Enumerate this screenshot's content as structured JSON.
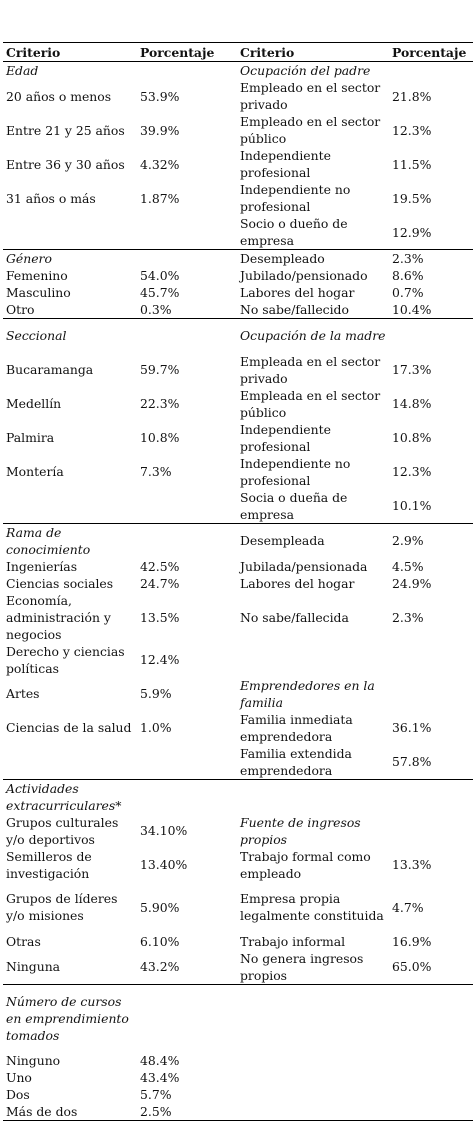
{
  "header": {
    "c1": "Criterio",
    "c2": "Porcentaje",
    "c3": "Criterio",
    "c4": "Porcentaje"
  },
  "rows": [
    {
      "h": 17,
      "l": "Edad",
      "li": 1,
      "lp": "",
      "r": "Ocupación del padre",
      "ri": 1,
      "rp": ""
    },
    {
      "h": 34,
      "l": "20 años o menos",
      "lp": "53.9%",
      "r": "Empleado en el sector privado",
      "rp": "21.8%"
    },
    {
      "h": 34,
      "l": "Entre 21 y 25 años",
      "lp": "39.9%",
      "r": "Empleado en el sector público",
      "rp": "12.3%"
    },
    {
      "h": 34,
      "l": "Entre 36 y 30 años",
      "lp": "4.32%",
      "r": "Independiente profesional",
      "rp": "11.5%"
    },
    {
      "h": 34,
      "l": "31 años o más",
      "lp": "1.87%",
      "r": "Independiente no profesional",
      "rp": "19.5%"
    },
    {
      "h": 34,
      "l": "",
      "lp": "",
      "r": "Socio o dueño de empresa",
      "rp": "12.9%"
    },
    {
      "h": 17,
      "top": 1,
      "l": "Género",
      "li": 1,
      "lp": "",
      "r": "Desempleado",
      "rp": "2.3%"
    },
    {
      "h": 17,
      "l": "Femenino",
      "lp": "54.0%",
      "r": "Jubilado/pensionado",
      "rp": "8.6%"
    },
    {
      "h": 17,
      "l": "Masculino",
      "lp": "45.7%",
      "r": "Labores del hogar",
      "rp": "0.7%"
    },
    {
      "h": 17,
      "l": "Otro",
      "lp": "0.3%",
      "r": "No sabe/fallecido",
      "rp": "10.4%"
    },
    {
      "h": 34,
      "top": 1,
      "l": "Seccional",
      "li": 1,
      "lp": "",
      "r": "Ocupación de la madre",
      "ri": 1,
      "rp": ""
    },
    {
      "h": 34,
      "l": "Bucaramanga",
      "lp": "59.7%",
      "r": "Empleada en el sector privado",
      "rp": "17.3%"
    },
    {
      "h": 34,
      "l": "Medellín",
      "lp": "22.3%",
      "r": "Empleada en el sector público",
      "rp": "14.8%"
    },
    {
      "h": 34,
      "l": "Palmira",
      "lp": "10.8%",
      "r": "Independiente profesional",
      "rp": "10.8%"
    },
    {
      "h": 34,
      "l": "Montería",
      "lp": "7.3%",
      "r": "Independiente no profesional",
      "rp": "12.3%"
    },
    {
      "h": 34,
      "l": "",
      "lp": "",
      "r": "Socia o dueña de empresa",
      "rp": "10.1%"
    },
    {
      "h": 34,
      "top": 1,
      "l": "Rama de conocimiento",
      "li": 1,
      "lp": "",
      "r": "Desempleada",
      "rp": "2.9%"
    },
    {
      "h": 17,
      "l": "Ingenierías",
      "lp": "42.5%",
      "r": "Jubilada/pensionada",
      "rp": "4.5%"
    },
    {
      "h": 17,
      "l": "Ciencias sociales",
      "lp": "24.7%",
      "r": "Labores del hogar",
      "rp": "24.9%"
    },
    {
      "h": 51,
      "l": "Economía, administración y negocios",
      "lp": "13.5%",
      "r": "No sabe/fallecida",
      "rp": "2.3%"
    },
    {
      "h": 34,
      "l": "Derecho y ciencias políticas",
      "lp": "12.4%",
      "r": "",
      "rp": ""
    },
    {
      "h": 34,
      "l": "Artes",
      "lp": "5.9%",
      "r": "Emprendedores en la familia",
      "ri": 1,
      "rp": ""
    },
    {
      "h": 34,
      "l": "Ciencias de la salud",
      "lp": "1.0%",
      "r": "Familia inmediata emprendedora",
      "rp": "36.1%"
    },
    {
      "h": 34,
      "l": "",
      "lp": "",
      "r": "Familia extendida emprendedora",
      "rp": "57.8%"
    },
    {
      "h": 34,
      "top": 1,
      "l": "Actividades extracurriculares*",
      "li": 1,
      "lp": "",
      "r": "",
      "rp": ""
    },
    {
      "h": 34,
      "l": "Grupos culturales y/o deportivos",
      "lp": "34.10%",
      "r": "Fuente de ingresos propios",
      "ri": 1,
      "rp": ""
    },
    {
      "h": 34,
      "l": "Semilleros de investigación",
      "lp": "13.40%",
      "r": "Trabajo formal como empleado",
      "rp": "13.3%"
    },
    {
      "h": 51,
      "l": "Grupos de líderes y/o misiones",
      "lp": "5.90%",
      "r": "Empresa propia legalmente constituida",
      "rp": "4.7%"
    },
    {
      "h": 17,
      "l": "Otras",
      "lp": "6.10%",
      "r": "Trabajo informal",
      "rp": "16.9%"
    },
    {
      "h": 34,
      "l": "Ninguna",
      "lp": "43.2%",
      "r": "No genera ingresos propios",
      "rp": "65.0%"
    },
    {
      "h": 68,
      "top": 1,
      "l": "Número de cursos en emprendimiento tomados",
      "li": 1,
      "lp": "",
      "r": "",
      "rp": ""
    },
    {
      "h": 17,
      "l": "Ninguno",
      "lp": "48.4%",
      "r": "",
      "rp": ""
    },
    {
      "h": 17,
      "l": "Uno",
      "lp": "43.4%",
      "r": "",
      "rp": ""
    },
    {
      "h": 17,
      "l": "Dos",
      "lp": "5.7%",
      "r": "",
      "rp": ""
    },
    {
      "h": 17,
      "last": 1,
      "l": "Más de dos",
      "lp": "2.5%",
      "r": "",
      "rp": ""
    }
  ]
}
